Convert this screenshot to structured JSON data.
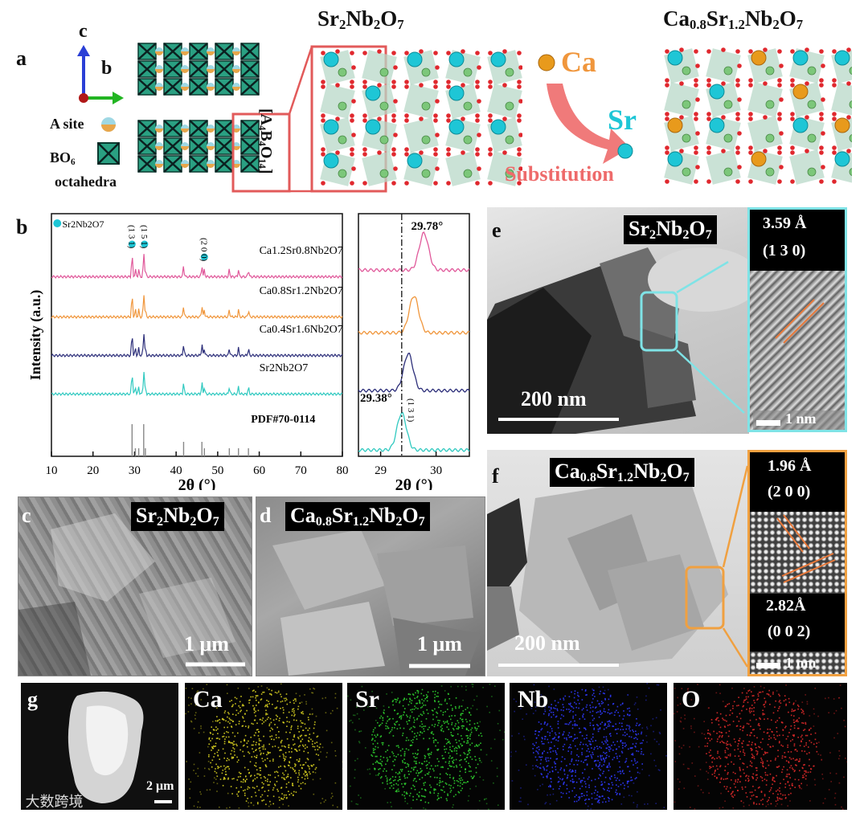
{
  "panel_a": {
    "label": "a",
    "axis_c": "c",
    "axis_b": "b",
    "legend_a_site": "A site",
    "legend_bo6": "BO",
    "legend_bo6_sub": "6",
    "legend_octahedra": "octahedra",
    "block_label": "[A4B4O14]",
    "title_left_parts": [
      "Sr",
      "2",
      "Nb",
      "2",
      "O",
      "7"
    ],
    "title_right_parts": [
      "Ca",
      "0.8",
      "Sr",
      "1.2",
      "Nb",
      "2",
      "O",
      "7"
    ],
    "ca_label": "Ca",
    "sr_label": "Sr",
    "substitution_label": "Substitution",
    "colors": {
      "sr": "#1ec6d6",
      "ca": "#e89a1c",
      "nb": "#7cc77a",
      "o": "#e0282e",
      "octahedron": "#b8d8c8",
      "arrow": "#ee6b6b"
    }
  },
  "panel_b": {
    "label": "b",
    "ylabel": "Intensity (a.u.)",
    "xlabel_main": "2θ (°)",
    "xlabel_zoom": "2θ (°)",
    "legend_marker": "Sr2Nb2O7",
    "peak_labels": [
      "(1 3 1)",
      "(1 5 1)",
      "(2 0 0)"
    ],
    "angle_top": "29.78°",
    "angle_bottom": "29.38°",
    "zoom_peak_label": "(1 3 1)"
  },
  "chart_data": [
    {
      "type": "line",
      "title": "",
      "xlabel": "2θ (°)",
      "ylabel": "Intensity (a.u.)",
      "xlim": [
        10,
        80
      ],
      "xticks": [
        10,
        20,
        30,
        40,
        50,
        60,
        70,
        80
      ],
      "series": [
        {
          "name": "Ca1.2Sr0.8Nb2O7",
          "color": "#e0589a"
        },
        {
          "name": "Ca0.8Sr1.2Nb2O7",
          "color": "#f0963c"
        },
        {
          "name": "Ca0.4Sr1.6Nb2O7",
          "color": "#2d2f7a"
        },
        {
          "name": "Sr2Nb2O7",
          "color": "#30c9c0"
        },
        {
          "name": "PDF#70-0114",
          "color": "#888888"
        }
      ],
      "reference_peaks": [
        29.4,
        30.2,
        31.0,
        32.2,
        32.6,
        41.8,
        46.2,
        46.8,
        52.8,
        55.0,
        57.4
      ]
    },
    {
      "type": "line",
      "title": "",
      "xlabel": "2θ (°)",
      "xlim": [
        28.6,
        30.6
      ],
      "xticks": [
        29,
        30
      ],
      "peak_positions": {
        "Ca1.2Sr0.8Nb2O7": 29.78,
        "Ca0.8Sr1.2Nb2O7": 29.6,
        "Ca0.4Sr1.6Nb2O7": 29.5,
        "Sr2Nb2O7": 29.38
      }
    }
  ],
  "panel_c": {
    "label": "c",
    "title_parts": [
      "Sr",
      "2",
      "Nb",
      "2",
      "O",
      "7"
    ],
    "scale": "1 μm"
  },
  "panel_d": {
    "label": "d",
    "title_parts": [
      "Ca",
      "0.8",
      "Sr",
      "1.2",
      "Nb",
      "2",
      "O",
      "7"
    ],
    "scale": "1 μm"
  },
  "panel_e": {
    "label": "e",
    "title_parts": [
      "Sr",
      "2",
      "Nb",
      "2",
      "O",
      "7"
    ],
    "scale": "200 nm",
    "d_spacing": "3.59 Å",
    "plane": "(1 3 0)",
    "inset_scale": "1 nm"
  },
  "panel_f": {
    "label": "f",
    "title_parts": [
      "Ca",
      "0.8",
      "Sr",
      "1.2",
      "Nb",
      "2",
      "O",
      "7"
    ],
    "scale": "200 nm",
    "d_spacing_1": "1.96 Å",
    "plane_1": "(2 0 0)",
    "d_spacing_2": "2.82Å",
    "plane_2": "(0 0 2)",
    "inset_scale": "1 nm"
  },
  "panel_g": {
    "label": "g",
    "scale": "2 μm",
    "elements": [
      {
        "name": "Ca",
        "color": "#d8d020"
      },
      {
        "name": "Sr",
        "color": "#2fcf2f"
      },
      {
        "name": "Nb",
        "color": "#2f3aff"
      },
      {
        "name": "O",
        "color": "#e02a2a"
      }
    ]
  },
  "watermark": "大数跨境"
}
